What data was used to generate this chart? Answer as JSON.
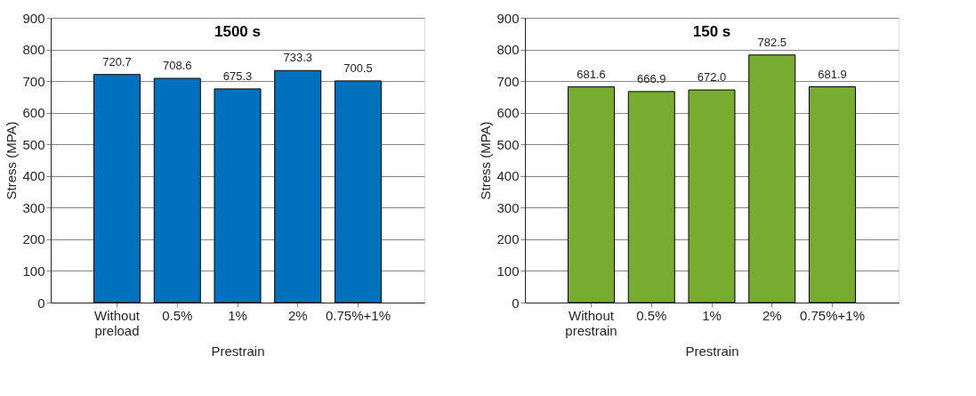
{
  "chart_data": [
    {
      "type": "bar",
      "title": "1500 s",
      "xlabel": "Prestrain",
      "ylabel": "Stress (MPA)",
      "categories": [
        "Without\npreload",
        "0.5%",
        "1%",
        "2%",
        "0.75%+1%"
      ],
      "series": [
        {
          "color": "#0072bd",
          "values": [
            720.7,
            708.6,
            675.3,
            733.3,
            700.5
          ],
          "value_labels": [
            "720.7",
            "708.6",
            "675.3",
            "733.3",
            "700.5"
          ]
        }
      ],
      "ylim": [
        0,
        900
      ],
      "yticks": [
        0,
        100,
        200,
        300,
        400,
        500,
        600,
        700,
        800,
        900
      ],
      "grid": "y"
    },
    {
      "type": "bar",
      "title": "150 s",
      "xlabel": "Prestrain",
      "ylabel": "Stress (MPA)",
      "categories": [
        "Without\nprestrain",
        "0.5%",
        "1%",
        "2%",
        "0.75%+1%"
      ],
      "series": [
        {
          "color": "#77ac30",
          "values": [
            681.6,
            666.9,
            672.0,
            782.5,
            681.9
          ],
          "value_labels": [
            "681.6",
            "666.9",
            "672.0",
            "782.5",
            "681.9"
          ]
        }
      ],
      "ylim": [
        0,
        900
      ],
      "yticks": [
        0,
        100,
        200,
        300,
        400,
        500,
        600,
        700,
        800,
        900
      ],
      "grid": "y"
    }
  ]
}
